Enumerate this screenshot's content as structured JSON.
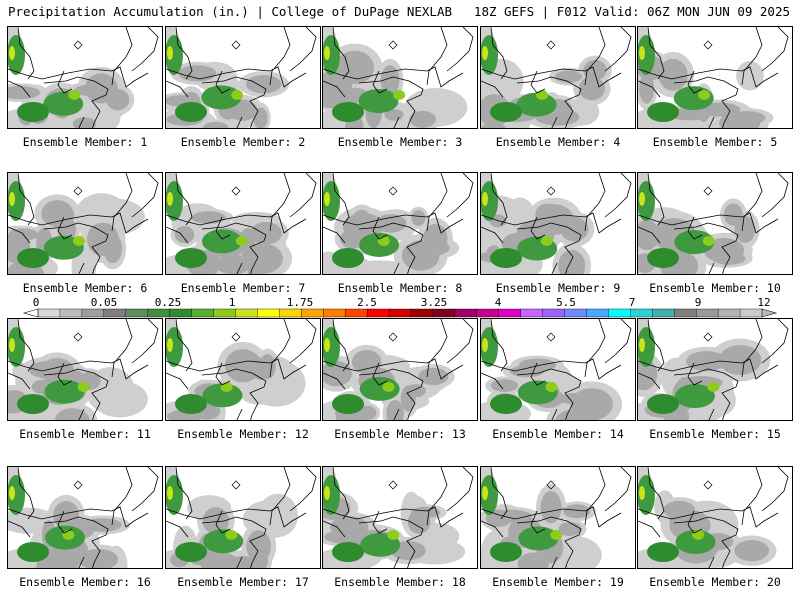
{
  "header": {
    "left": "Precipitation Accumulation (in.) | College of DuPage NEXLAB",
    "right": "18Z GEFS | F012 Valid: 06Z MON JUN 09 2025"
  },
  "panel_prefix": "Ensemble Member: ",
  "members": [
    "1",
    "2",
    "3",
    "4",
    "5",
    "6",
    "7",
    "8",
    "9",
    "10",
    "11",
    "12",
    "13",
    "14",
    "15",
    "16",
    "17",
    "18",
    "19",
    "20"
  ],
  "colorbar": {
    "labels": [
      "0",
      "0.05",
      "0.25",
      "1",
      "1.75",
      "2.5",
      "3.25",
      "4",
      "5.5",
      "7",
      "9",
      "12"
    ],
    "colors": [
      "#d9d9d9",
      "#bdbdbd",
      "#9e9e9e",
      "#7f7f7f",
      "#5f8f5f",
      "#3f8f3f",
      "#2e8b2e",
      "#55b02a",
      "#8ccc1a",
      "#c9e41a",
      "#ffff00",
      "#ffd700",
      "#ffa500",
      "#ff7f00",
      "#ff4500",
      "#ff0000",
      "#d40000",
      "#a00000",
      "#800020",
      "#a0006a",
      "#c8008c",
      "#e000c8",
      "#c864ff",
      "#9b64ff",
      "#6e8cff",
      "#46aaff",
      "#00ffff",
      "#2ad4d4",
      "#40b0b0",
      "#808080",
      "#9a9a9a",
      "#b4b4b4",
      "#cccccc"
    ],
    "colors_note": ""
  }
}
